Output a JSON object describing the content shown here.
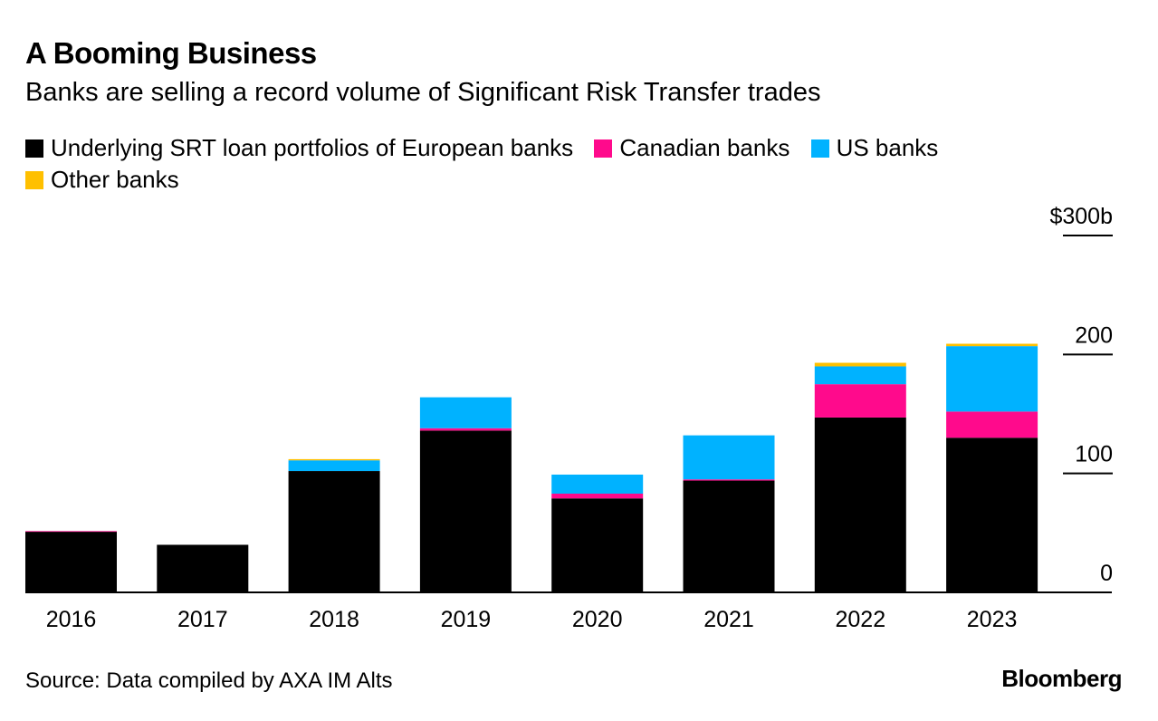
{
  "title": "A Booming Business",
  "subtitle": "Banks are selling a record volume of Significant Risk Transfer trades",
  "source": "Source: Data compiled by AXA IM Alts",
  "brand": "Bloomberg",
  "chart_data": {
    "type": "bar",
    "stacked": true,
    "categories": [
      "2016",
      "2017",
      "2018",
      "2019",
      "2020",
      "2021",
      "2022",
      "2023"
    ],
    "series": [
      {
        "name": "Underlying SRT loan portfolios of European banks",
        "color": "#000000",
        "values": [
          51,
          40,
          102,
          136,
          79,
          94,
          147,
          130
        ]
      },
      {
        "name": "Canadian banks",
        "color": "#ff0a8c",
        "values": [
          0.5,
          0,
          0,
          2,
          4,
          1,
          28,
          22
        ]
      },
      {
        "name": "US banks",
        "color": "#00b2ff",
        "values": [
          0,
          0,
          9,
          26,
          16,
          37,
          15,
          55
        ]
      },
      {
        "name": "Other banks",
        "color": "#ffc000",
        "values": [
          0,
          0,
          1,
          0,
          0,
          0,
          3,
          2
        ]
      }
    ],
    "ylim": [
      0,
      300
    ],
    "yticks": [
      0,
      100,
      200,
      300
    ],
    "ytick_labels": [
      "0",
      "100",
      "200",
      "$300b"
    ],
    "grid": false,
    "legend_position": "top-left"
  }
}
